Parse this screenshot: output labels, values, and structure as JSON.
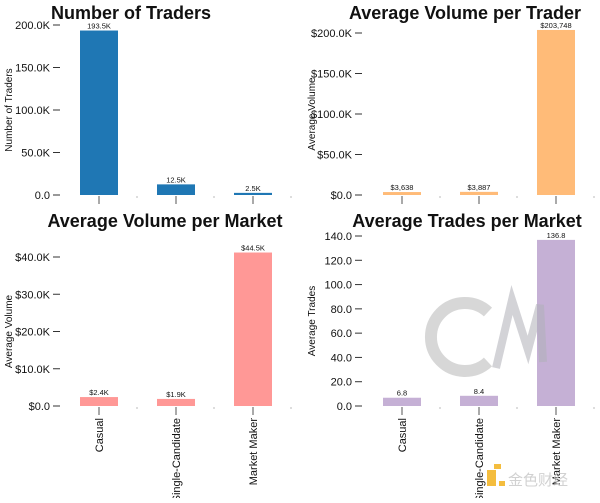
{
  "chart_data": [
    {
      "type": "bar",
      "title": "Number of Traders",
      "ylabel": "Number of Traders",
      "categories": [
        "Casual",
        "Single-Candidate",
        "Market Maker"
      ],
      "show_categories": false,
      "values": [
        193500,
        12500,
        2500
      ],
      "data_labels": [
        "193.5K",
        "12.5K",
        "2.5K"
      ],
      "ylim": [
        0,
        200000
      ],
      "yticks": [
        {
          "value": 0,
          "label": "0.0"
        },
        {
          "value": 50000,
          "label": "50.0K"
        },
        {
          "value": 100000,
          "label": "100.0K"
        },
        {
          "value": 150000,
          "label": "150.0K"
        },
        {
          "value": 200000,
          "label": "200.0K"
        }
      ],
      "color": "#1f77b4",
      "grid": false
    },
    {
      "type": "bar",
      "title": "Average Volume per Trader",
      "ylabel": "Average Volume",
      "categories": [
        "Casual",
        "Single-Candidate",
        "Market Maker"
      ],
      "show_categories": false,
      "values": [
        3638,
        3887,
        203748
      ],
      "data_labels": [
        "$3,638",
        "$3,887",
        "$203,748"
      ],
      "ylim": [
        0,
        200000
      ],
      "yticks": [
        {
          "value": 0,
          "label": "$0.0"
        },
        {
          "value": 50000,
          "label": "$50.0K"
        },
        {
          "value": 100000,
          "label": "$100.0K"
        },
        {
          "value": 150000,
          "label": "$150.0K"
        },
        {
          "value": 200000,
          "label": "$200.0K"
        }
      ],
      "color": "#ffbb78",
      "grid": false
    },
    {
      "type": "bar",
      "title": "Average Volume per Market",
      "ylabel": "Average Volume",
      "categories": [
        "Casual",
        "Single-Candidate",
        "Market Maker"
      ],
      "show_categories": true,
      "values": [
        2400,
        1900,
        44500
      ],
      "data_labels": [
        "$2.4K",
        "$1.9K",
        "$44.5K"
      ],
      "ylim": [
        0,
        40000
      ],
      "yticks": [
        {
          "value": 0,
          "label": "$0.0"
        },
        {
          "value": 10000,
          "label": "$10.0K"
        },
        {
          "value": 20000,
          "label": "$20.0K"
        },
        {
          "value": 30000,
          "label": "$30.0K"
        },
        {
          "value": 40000,
          "label": "$40.0K"
        }
      ],
      "color": "#ff9896",
      "grid": false
    },
    {
      "type": "bar",
      "title": "Average Trades per Market",
      "ylabel": "Average Trades",
      "categories": [
        "Casual",
        "Single-Candidate",
        "Market Maker"
      ],
      "show_categories": true,
      "values": [
        6.8,
        8.4,
        136.8
      ],
      "data_labels": [
        "6.8",
        "8.4",
        "136.8"
      ],
      "ylim": [
        0,
        140
      ],
      "yticks": [
        {
          "value": 0,
          "label": "0.0"
        },
        {
          "value": 20,
          "label": "20.0"
        },
        {
          "value": 40,
          "label": "40.0"
        },
        {
          "value": 60,
          "label": "60.0"
        },
        {
          "value": 80,
          "label": "80.0"
        },
        {
          "value": 100,
          "label": "100.0"
        },
        {
          "value": 120,
          "label": "120.0"
        },
        {
          "value": 140,
          "label": "140.0"
        }
      ],
      "color": "#c5b0d5",
      "grid": false
    }
  ],
  "watermarks": {
    "logo": "CM",
    "brand": "金色财经"
  }
}
